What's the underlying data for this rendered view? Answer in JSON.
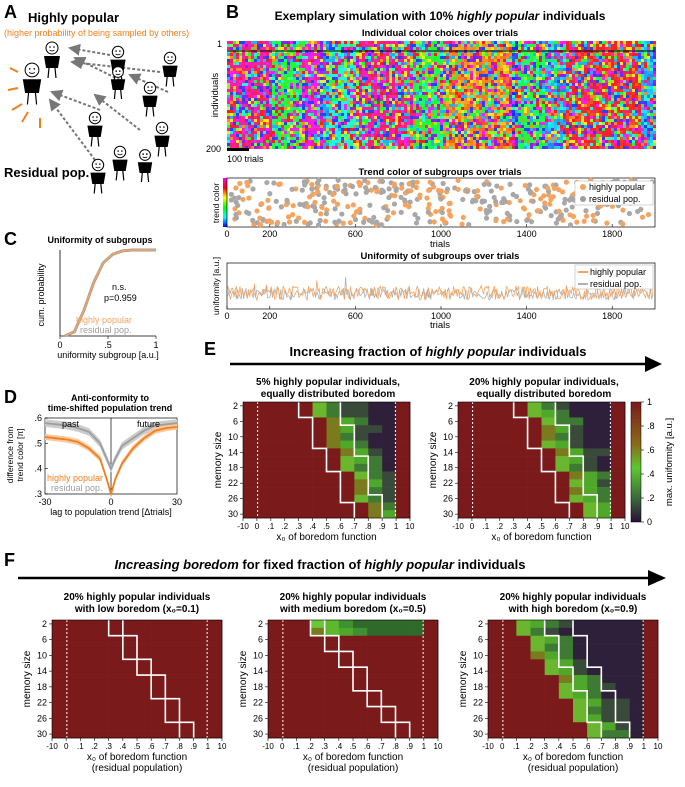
{
  "colors": {
    "orange": "#f4a460",
    "orange_dark": "#f07f20",
    "gray": "#9e9e9e",
    "maroon": "#7b1a1a",
    "green": "#5cc82e",
    "dark": "#3a1a3a"
  },
  "panel_a": {
    "label": "A",
    "highly_popular": "Highly popular",
    "subtitle": "(higher probability of being sampled by others)",
    "residual": "Residual pop."
  },
  "panel_b": {
    "label": "B",
    "title_pre": "Exemplary simulation with 10% ",
    "title_em": "highly popular",
    "title_post": " individuals",
    "raster_title": "Individual color choices over trials",
    "raster_ylabel": "individuals",
    "raster_y_top": "1",
    "raster_y_bottom": "200",
    "scale_bar": "100 trials",
    "trend_title": "Trend color of subgroups over trials",
    "trend_ylabel": "trend color",
    "uni_title": "Uniformity of subgroups over trials",
    "uni_ylabel": "uniformity [a.u.]",
    "xlabel": "trials",
    "xticks": [
      "0",
      "200",
      "600",
      "1000",
      "1400",
      "1800"
    ],
    "legend_hp": "highly popular",
    "legend_res": "residual pop."
  },
  "panel_c": {
    "label": "C",
    "title": "Uniformity of subgroups",
    "ylabel": "cum. probability",
    "xlabel": "uniformity subgroup [a.u.]",
    "ns": "n.s.",
    "p": "p=0.959",
    "xticks": [
      "0",
      ".5",
      "1"
    ],
    "legend_hp": "highly popular",
    "legend_res": "residual pop."
  },
  "panel_d": {
    "label": "D",
    "title1": "Anti-conformity to",
    "title2": "time-shifted population trend",
    "ylabel1": "difference from",
    "ylabel2": "trend color [π]",
    "xlabel": "lag to population trend [Δtrials]",
    "past": "past",
    "future": "future",
    "yticks": [
      ".6",
      ".5",
      ".4",
      ".3"
    ],
    "xticks": [
      "-30",
      "0",
      "30"
    ],
    "legend_hp": "highly popular",
    "legend_res": "residual pop."
  },
  "panel_e": {
    "label": "E",
    "arrow_pre": "Increasing fraction of ",
    "arrow_em": "highly popular",
    "arrow_post": " individuals",
    "heat1_title1": "5% highly popular individuals,",
    "heat1_title2": "equally distributed boredom",
    "heat2_title1": "20% highly popular individuals,",
    "heat2_title2": "equally distributed boredom",
    "ylabel": "memory size",
    "xlabel": "x₀ of boredom function",
    "cbar_label": "max. uniformity [a.u.]",
    "cbar_ticks": [
      "1",
      ".8",
      ".6",
      ".4",
      ".2",
      "0"
    ]
  },
  "panel_f": {
    "label": "F",
    "arrow_em": "Increasing boredom",
    "arrow_mid": " for fixed fraction of ",
    "arrow_em2": "highly popular",
    "arrow_post": " individuals",
    "h1_title1": "20% highly popular individuals",
    "h1_title2": "with low boredom (x₀=0.1)",
    "h2_title1": "20% highly popular individuals",
    "h2_title2": "with medium boredom (x₀=0.5)",
    "h3_title1": "20% highly popular individuals",
    "h3_title2": "with high boredom (x₀=0.9)",
    "ylabel": "memory size",
    "xlabel1": "x₀ of boredom function",
    "xlabel2": "(residual population)"
  },
  "heat_axes": {
    "yticks": [
      "2",
      "6",
      "10",
      "14",
      "18",
      "22",
      "26",
      "30"
    ],
    "xticks": [
      "-10",
      "0",
      ".1",
      ".2",
      ".3",
      ".4",
      ".5",
      ".6",
      ".7",
      ".8",
      ".9",
      "1",
      "10"
    ]
  },
  "chart_data": [
    {
      "type": "line",
      "title": "Uniformity of subgroups",
      "xlabel": "uniformity subgroup [a.u.]",
      "ylabel": "cum. probability",
      "series": [
        {
          "name": "highly popular",
          "x": [
            0.05,
            0.15,
            0.25,
            0.35,
            0.45,
            0.55,
            0.65,
            0.75,
            0.85,
            1.0
          ],
          "values": [
            0.0,
            0.05,
            0.3,
            0.62,
            0.85,
            0.95,
            0.99,
            1.0,
            1.0,
            1.0
          ]
        },
        {
          "name": "residual pop.",
          "x": [
            0.05,
            0.15,
            0.25,
            0.35,
            0.45,
            0.55,
            0.65,
            0.75,
            0.85,
            1.0
          ],
          "values": [
            0.0,
            0.05,
            0.3,
            0.62,
            0.85,
            0.95,
            0.99,
            1.0,
            1.0,
            1.0
          ]
        }
      ],
      "xlim": [
        0,
        1
      ],
      "ylim": [
        0,
        1
      ]
    },
    {
      "type": "line",
      "title": "Anti-conformity to time-shifted population trend",
      "xlabel": "lag to population trend [Δtrials]",
      "ylabel": "difference from trend color [π]",
      "x": [
        -30,
        -25,
        -20,
        -15,
        -10,
        -5,
        -2,
        0,
        2,
        5,
        10,
        15,
        20,
        25,
        30
      ],
      "series": [
        {
          "name": "highly popular",
          "values": [
            0.525,
            0.52,
            0.515,
            0.505,
            0.48,
            0.44,
            0.36,
            0.3,
            0.36,
            0.42,
            0.48,
            0.52,
            0.55,
            0.56,
            0.565
          ]
        },
        {
          "name": "residual pop.",
          "values": [
            0.58,
            0.575,
            0.57,
            0.56,
            0.545,
            0.5,
            0.44,
            0.4,
            0.44,
            0.49,
            0.52,
            0.55,
            0.57,
            0.575,
            0.58
          ]
        }
      ],
      "xlim": [
        -30,
        30
      ],
      "ylim": [
        0.3,
        0.6
      ]
    }
  ]
}
